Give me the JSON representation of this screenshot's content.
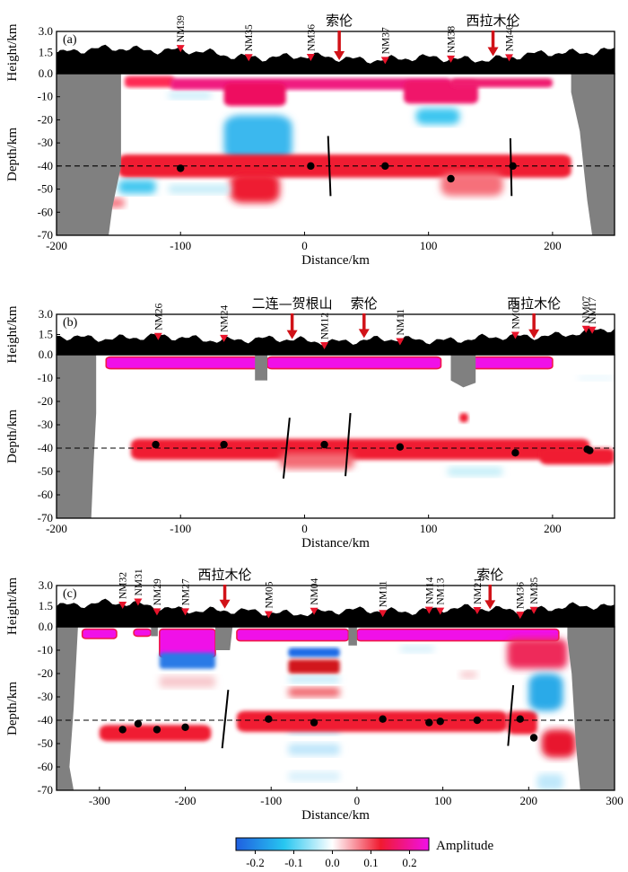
{
  "colors": {
    "topo": "#000000",
    "mask": "#808080",
    "station": "#e8142b",
    "arrow": "#d11218",
    "moho_dots": "#000000",
    "frame": "#000000"
  },
  "colorbar": {
    "label": "Amplitude",
    "ticks": [
      "-0.2",
      "-0.1",
      "0.0",
      "0.1",
      "0.2"
    ],
    "range": [
      -0.25,
      0.25
    ],
    "stops": [
      "#1f5fe0",
      "#27c6f0",
      "#ffffff",
      "#f01a30",
      "#f010e8"
    ]
  },
  "chart_data": [
    {
      "type": "heatmap",
      "label": "(a)",
      "xlabel": "Distance/km",
      "ylabel_height": "Height/km",
      "ylabel_depth": "Depth/km",
      "xlim": [
        -200,
        250
      ],
      "depth_lim": [
        -70,
        0
      ],
      "height_lim": [
        0,
        3
      ],
      "xticks": [
        "-200",
        "-100",
        "0",
        "100",
        "200"
      ],
      "depth_ticks": [
        "0.0",
        "-10",
        "-20",
        "-30",
        "-40",
        "-50",
        "-60",
        "-70"
      ],
      "height_ticks": [
        "3.0",
        "1.5",
        "0.0"
      ],
      "reference_depth": -40,
      "stations": [
        {
          "name": "NM39",
          "x": -100
        },
        {
          "name": "NM35",
          "x": -45
        },
        {
          "name": "NM36",
          "x": 5
        },
        {
          "name": "NM37",
          "x": 65
        },
        {
          "name": "NM38",
          "x": 118
        },
        {
          "name": "NM40",
          "x": 165
        }
      ],
      "towns": [
        {
          "name": "索伦",
          "x": 28
        },
        {
          "name": "西拉木伦",
          "x": 152
        }
      ],
      "moho_points": [
        {
          "x": -100,
          "y": -41
        },
        {
          "x": 5,
          "y": -40
        },
        {
          "x": 65,
          "y": -40
        },
        {
          "x": 118,
          "y": -45.5
        },
        {
          "x": 168,
          "y": -40
        }
      ],
      "faults": [
        {
          "x1": 19,
          "y1": -27,
          "x2": 21,
          "y2": -53
        },
        {
          "x1": 166,
          "y1": -28,
          "x2": 167,
          "y2": -53
        }
      ]
    },
    {
      "type": "heatmap",
      "label": "(b)",
      "xlabel": "Distance/km",
      "ylabel_height": "Height/km",
      "ylabel_depth": "Depth/km",
      "xlim": [
        -200,
        250
      ],
      "depth_lim": [
        -70,
        0
      ],
      "height_lim": [
        0,
        3
      ],
      "xticks": [
        "-200",
        "-100",
        "0",
        "100",
        "200"
      ],
      "depth_ticks": [
        "0.0",
        "-10",
        "-20",
        "-30",
        "-40",
        "-50",
        "-60",
        "-70"
      ],
      "height_ticks": [
        "3.0",
        "1.5",
        "0.0"
      ],
      "reference_depth": -40,
      "stations": [
        {
          "name": "NM26",
          "x": -118
        },
        {
          "name": "NM24",
          "x": -65
        },
        {
          "name": "NM12",
          "x": 16
        },
        {
          "name": "NM11",
          "x": 77
        },
        {
          "name": "NM09",
          "x": 170
        },
        {
          "name": "NM07",
          "x": 227
        },
        {
          "name": "NM17",
          "x": 232
        }
      ],
      "towns": [
        {
          "name": "二连—贺根山",
          "x": -10
        },
        {
          "name": "索伦",
          "x": 48
        },
        {
          "name": "西拉木伦",
          "x": 185
        }
      ],
      "moho_points": [
        {
          "x": -120,
          "y": -38.5
        },
        {
          "x": -65,
          "y": -38.5
        },
        {
          "x": 16,
          "y": -38.5
        },
        {
          "x": 77,
          "y": -39.5
        },
        {
          "x": 170,
          "y": -42
        },
        {
          "x": 228,
          "y": -40.5
        },
        {
          "x": 230,
          "y": -41
        }
      ],
      "faults": [
        {
          "x1": -12,
          "y1": -27,
          "x2": -17,
          "y2": -53
        },
        {
          "x1": 37,
          "y1": -25,
          "x2": 33,
          "y2": -52
        }
      ]
    },
    {
      "type": "heatmap",
      "label": "(c)",
      "xlabel": "Distance/km",
      "ylabel_height": "Height/km",
      "ylabel_depth": "Depth/km",
      "xlim": [
        -350,
        300
      ],
      "depth_lim": [
        -70,
        0
      ],
      "height_lim": [
        0,
        3
      ],
      "xticks": [
        "-300",
        "-200",
        "-100",
        "0",
        "100",
        "200",
        "300"
      ],
      "depth_ticks": [
        "0.0",
        "-10",
        "-20",
        "-30",
        "-40",
        "-50",
        "-60",
        "-70"
      ],
      "height_ticks": [
        "3.0",
        "1.5",
        "0.0"
      ],
      "reference_depth": -40,
      "stations": [
        {
          "name": "NM32",
          "x": -273
        },
        {
          "name": "NM31",
          "x": -255
        },
        {
          "name": "NM29",
          "x": -233
        },
        {
          "name": "NM27",
          "x": -200
        },
        {
          "name": "NM05",
          "x": -103
        },
        {
          "name": "NM04",
          "x": -50
        },
        {
          "name": "NM11",
          "x": 30
        },
        {
          "name": "NM14",
          "x": 84
        },
        {
          "name": "NM13",
          "x": 97
        },
        {
          "name": "NM21",
          "x": 140
        },
        {
          "name": "NM36",
          "x": 190
        },
        {
          "name": "NM35",
          "x": 206
        }
      ],
      "towns": [
        {
          "name": "西拉木伦",
          "x": -154
        },
        {
          "name": "索伦",
          "x": 155
        }
      ],
      "moho_points": [
        {
          "x": -273,
          "y": -44
        },
        {
          "x": -255,
          "y": -41.5
        },
        {
          "x": -233,
          "y": -44
        },
        {
          "x": -200,
          "y": -43
        },
        {
          "x": -103,
          "y": -39.5
        },
        {
          "x": -50,
          "y": -41
        },
        {
          "x": 30,
          "y": -39.5
        },
        {
          "x": 84,
          "y": -41
        },
        {
          "x": 97,
          "y": -40.5
        },
        {
          "x": 140,
          "y": -40
        },
        {
          "x": 190,
          "y": -39.5
        },
        {
          "x": 206,
          "y": -47.5
        }
      ],
      "faults": [
        {
          "x1": -150,
          "y1": -27,
          "x2": -157,
          "y2": -52
        },
        {
          "x1": 182,
          "y1": -25,
          "x2": 176,
          "y2": -51
        }
      ]
    }
  ]
}
